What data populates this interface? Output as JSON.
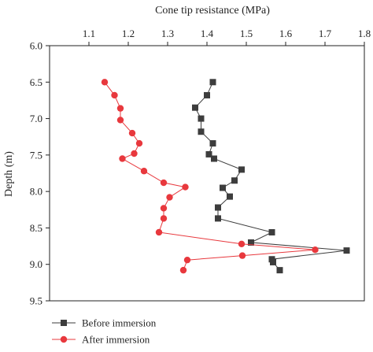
{
  "chart_data": {
    "type": "scatter",
    "title": "",
    "xlabel": "Cone tip resistance (MPa)",
    "ylabel": "Depth (m)",
    "x_axis_position": "top",
    "y_inverted": true,
    "xlim": [
      1.0,
      1.8
    ],
    "ylim": [
      6.0,
      9.5
    ],
    "x_ticks": [
      1.1,
      1.2,
      1.3,
      1.4,
      1.5,
      1.6,
      1.7,
      1.8
    ],
    "x_tick_labels": [
      "1.1",
      "1.2",
      "1.3",
      "1.4",
      "1.5",
      "1.6",
      "1.7",
      "1.8"
    ],
    "y_ticks": [
      6.0,
      6.5,
      7.0,
      7.5,
      8.0,
      8.5,
      9.0,
      9.5
    ],
    "y_tick_labels": [
      "6.0",
      "6.5",
      "7.0",
      "7.5",
      "8.0",
      "8.5",
      "9.0",
      "9.5"
    ],
    "grid": false,
    "legend_position": "bottom-left",
    "series": [
      {
        "name": "Before immersion",
        "marker": "square",
        "color": "#3d3d3d",
        "points": [
          {
            "x": 1.415,
            "y": 6.5
          },
          {
            "x": 1.4,
            "y": 6.68
          },
          {
            "x": 1.37,
            "y": 6.85
          },
          {
            "x": 1.385,
            "y": 7.0
          },
          {
            "x": 1.385,
            "y": 7.18
          },
          {
            "x": 1.415,
            "y": 7.34
          },
          {
            "x": 1.405,
            "y": 7.49
          },
          {
            "x": 1.418,
            "y": 7.55
          },
          {
            "x": 1.488,
            "y": 7.7
          },
          {
            "x": 1.47,
            "y": 7.85
          },
          {
            "x": 1.44,
            "y": 7.95
          },
          {
            "x": 1.458,
            "y": 8.07
          },
          {
            "x": 1.428,
            "y": 8.22
          },
          {
            "x": 1.428,
            "y": 8.37
          },
          {
            "x": 1.565,
            "y": 8.56
          },
          {
            "x": 1.512,
            "y": 8.7
          },
          {
            "x": 1.755,
            "y": 8.81
          },
          {
            "x": 1.565,
            "y": 8.93
          },
          {
            "x": 1.568,
            "y": 8.97
          },
          {
            "x": 1.585,
            "y": 9.08
          }
        ]
      },
      {
        "name": "After immersion",
        "marker": "circle",
        "color": "#e8383d",
        "points": [
          {
            "x": 1.14,
            "y": 6.5
          },
          {
            "x": 1.165,
            "y": 6.68
          },
          {
            "x": 1.18,
            "y": 6.86
          },
          {
            "x": 1.18,
            "y": 7.02
          },
          {
            "x": 1.21,
            "y": 7.2
          },
          {
            "x": 1.228,
            "y": 7.34
          },
          {
            "x": 1.215,
            "y": 7.48
          },
          {
            "x": 1.185,
            "y": 7.55
          },
          {
            "x": 1.24,
            "y": 7.72
          },
          {
            "x": 1.29,
            "y": 7.88
          },
          {
            "x": 1.345,
            "y": 7.94
          },
          {
            "x": 1.305,
            "y": 8.08
          },
          {
            "x": 1.29,
            "y": 8.23
          },
          {
            "x": 1.29,
            "y": 8.37
          },
          {
            "x": 1.278,
            "y": 8.56
          },
          {
            "x": 1.488,
            "y": 8.72
          },
          {
            "x": 1.675,
            "y": 8.8
          },
          {
            "x": 1.49,
            "y": 8.88
          },
          {
            "x": 1.35,
            "y": 8.94
          },
          {
            "x": 1.34,
            "y": 9.08
          }
        ]
      }
    ]
  }
}
